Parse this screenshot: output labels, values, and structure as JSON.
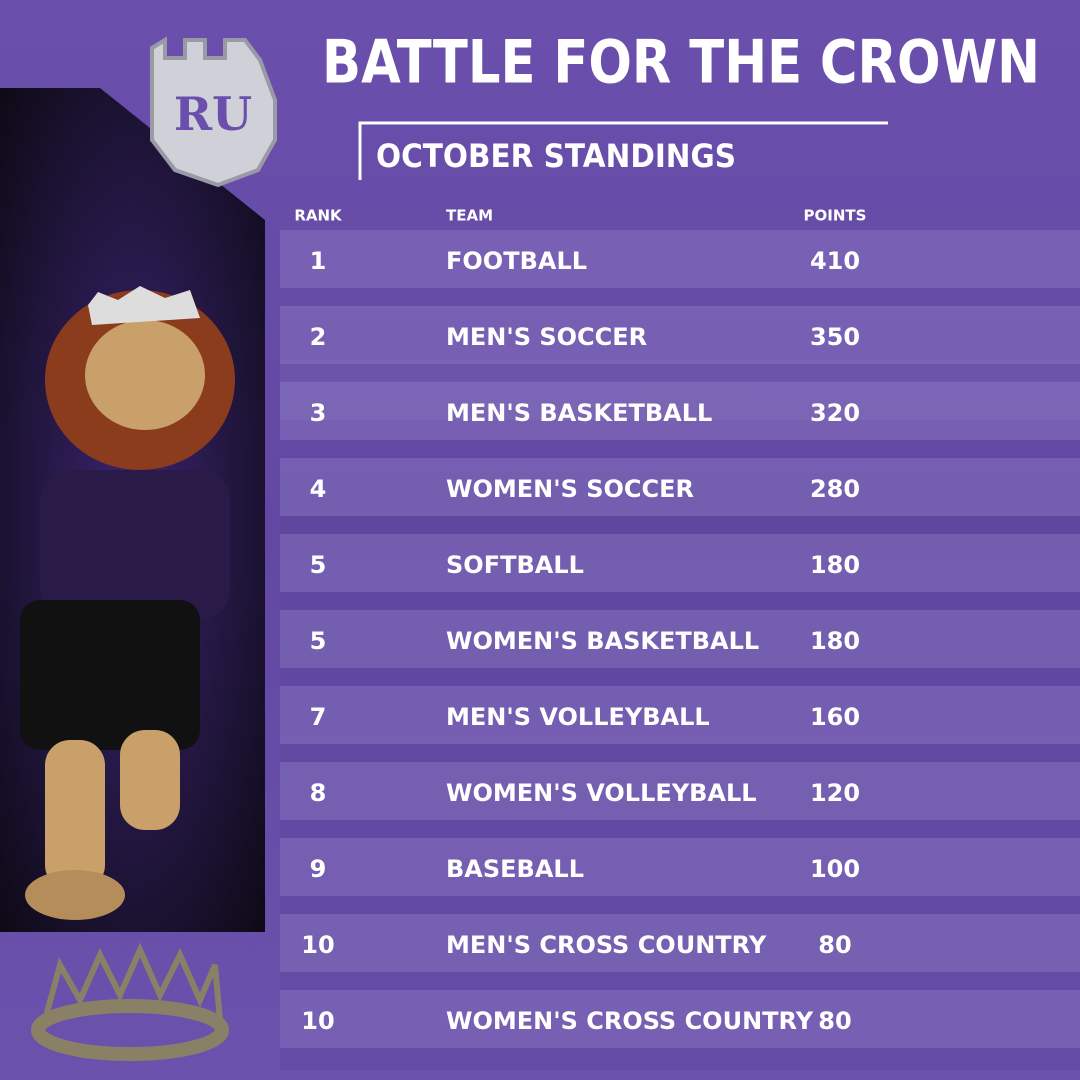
{
  "logo": {
    "text": "RU"
  },
  "header": {
    "title": "BATTLE FOR THE CROWN",
    "subtitle": "OCTOBER STANDINGS"
  },
  "table": {
    "columns": [
      "RANK",
      "TEAM",
      "POINTS"
    ],
    "rows": [
      [
        1,
        "FOOTBALL",
        410
      ],
      [
        2,
        "MEN'S SOCCER",
        350
      ],
      [
        3,
        "MEN'S BASKETBALL",
        320
      ],
      [
        4,
        "WOMEN'S SOCCER",
        280
      ],
      [
        5,
        "SOFTBALL",
        180
      ],
      [
        5,
        "WOMEN'S BASKETBALL",
        180
      ],
      [
        7,
        "MEN'S VOLLEYBALL",
        160
      ],
      [
        8,
        "WOMEN'S VOLLEYBALL",
        120
      ],
      [
        9,
        "BASEBALL",
        100
      ],
      [
        10,
        "MEN'S CROSS COUNTRY",
        80
      ],
      [
        10,
        "WOMEN'S CROSS COUNTRY",
        80
      ]
    ]
  }
}
